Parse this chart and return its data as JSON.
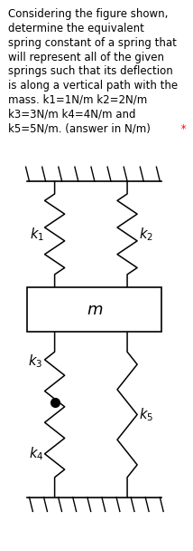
{
  "title_lines": [
    "Considering the figure shown,",
    "determine the equivalent",
    "spring constant of a spring that",
    "will represent all of the given",
    "springs such that its deflection",
    "is along a vertical path with the",
    "mass. k1=1N/m k2=2N/m",
    "k3=3N/m k4=4N/m and",
    "k5=5N/m. (answer in N/m)"
  ],
  "has_red_star": true,
  "background_color": "#ffffff",
  "k1_label": "$k_1$",
  "k2_label": "$k_2$",
  "k3_label": "$k_3$",
  "k4_label": "$k_4$",
  "k5_label": "$k_5$",
  "m_label": "$m$",
  "text_color": "#000000",
  "red_star_color": "#ff0000",
  "spring_color": "#000000",
  "wall_color": "#000000",
  "mass_box_color": "#000000",
  "title_fontsize": 8.5,
  "label_fontsize": 10.5,
  "m_fontsize": 13
}
